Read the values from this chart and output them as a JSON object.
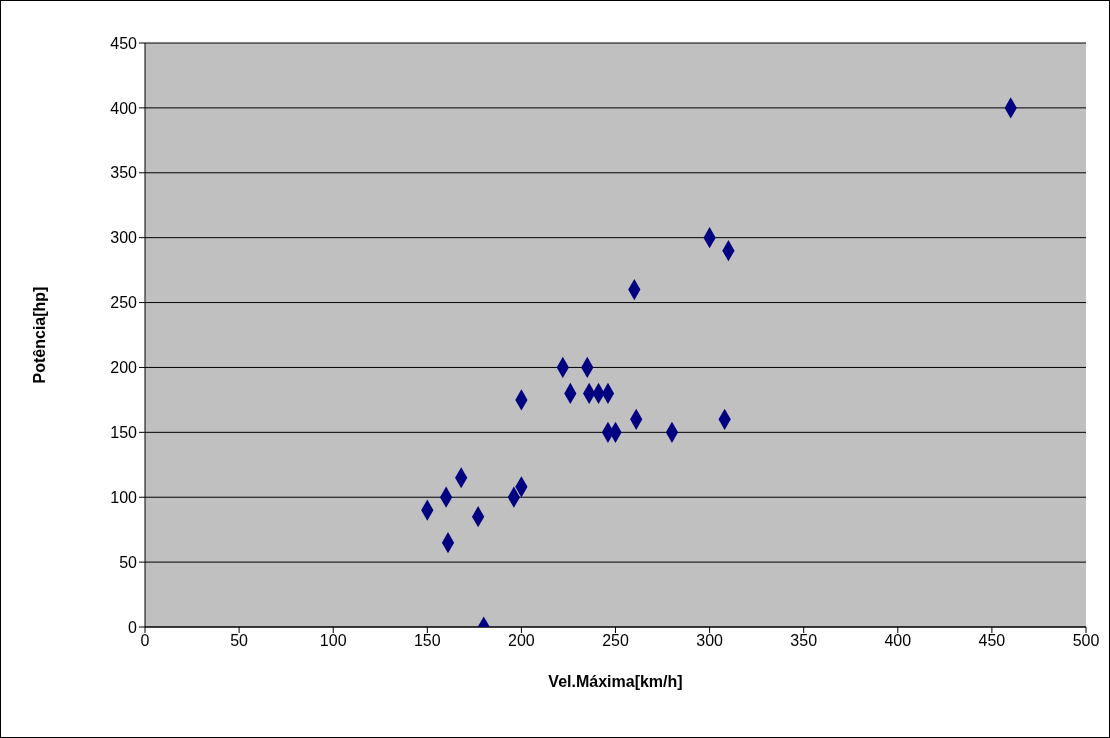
{
  "chart_data": {
    "type": "scatter",
    "xlabel": "Vel.Máxima[km/h]",
    "ylabel": "Potência[hp]",
    "x": [
      150,
      160,
      161,
      168,
      177,
      180,
      196,
      200,
      200,
      222,
      226,
      235,
      236,
      241,
      246,
      246,
      250,
      260,
      261,
      280,
      300,
      308,
      310,
      460
    ],
    "values": [
      90,
      100,
      65,
      115,
      85,
      0,
      100,
      108,
      175,
      200,
      180,
      200,
      180,
      180,
      180,
      150,
      150,
      260,
      160,
      150,
      300,
      160,
      290,
      400
    ],
    "color": "#000080",
    "marker": "diamond",
    "grid": "y",
    "xlim": [
      0,
      500
    ],
    "xticks": [
      0,
      50,
      100,
      150,
      200,
      250,
      300,
      350,
      400,
      450,
      500
    ],
    "ylim": [
      0,
      450
    ],
    "yticks": [
      0,
      50,
      100,
      150,
      200,
      250,
      300,
      350,
      400,
      450
    ]
  }
}
